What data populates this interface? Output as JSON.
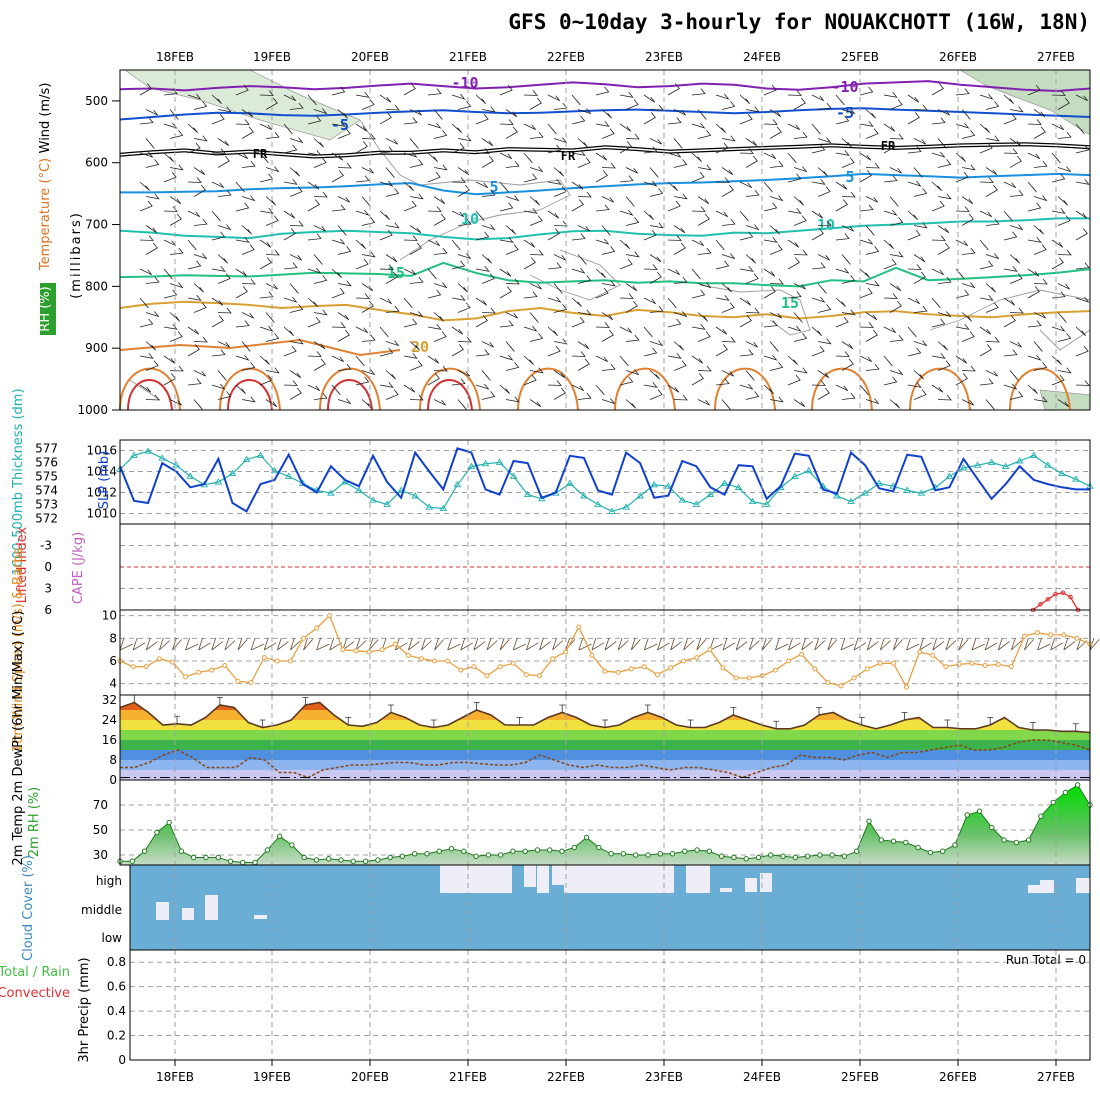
{
  "title": "GFS 0~10day 3-hourly for NOUAKCHOTT (16W, 18N)",
  "colors": {
    "grid": "#a0a0a0",
    "temp_label": "#e07020",
    "rh_label": "#2ca02c",
    "wind_label": "#000000",
    "slp_line": "#1040d0",
    "thickness_line": "#20b0b0",
    "cape_label": "#c060c0",
    "lifted_label": "#e03030",
    "wind10_label": "#e08a1a",
    "wind10_line": "#e8a040",
    "cloud_fill": "#6aaed6",
    "cloud_bar": "#eeeef8",
    "temp_band_hi": "#e0601a",
    "dew_line": "#8b4513",
    "rh_fill": "#2ca02c",
    "precip_total": "#44c044",
    "precip_conv": "#e03030"
  },
  "chart_data": [
    {
      "panel": "upper_air",
      "type": "contour",
      "title": "GFS 0~10day 3-hourly for NOUAKCHOTT (16W, 18N)",
      "x_ticks": [
        "18FEB",
        "19FEB",
        "20FEB",
        "21FEB",
        "22FEB",
        "23FEB",
        "24FEB",
        "25FEB",
        "26FEB",
        "27FEB"
      ],
      "ylabel_units": "(millibars)",
      "ylabel_wind": "Wind (m/s)",
      "ylabel_temp": "Temperature (°C)",
      "ylabel_rh": "RH (%)",
      "y_ticks": [
        "500",
        "600",
        "700",
        "800",
        "900",
        "1000"
      ],
      "ylim": [
        450,
        1000
      ],
      "isotherm_labels": [
        "-10",
        "-10",
        "-5",
        "-5",
        "FR",
        "FR",
        "FR",
        "5",
        "5",
        "10",
        "10",
        "15",
        "15",
        "20"
      ],
      "isotherms": [
        {
          "label": "-10",
          "color": "#8020b0",
          "pres": [
            481,
            480,
            483,
            479,
            476,
            478,
            481,
            479,
            475,
            472,
            476,
            480,
            478,
            474,
            470,
            473,
            478,
            476,
            472,
            474,
            480,
            482,
            478,
            472,
            470,
            468,
            474,
            478,
            482,
            484,
            480
          ]
        },
        {
          "label": "-5",
          "color": "#1050d0",
          "pres": [
            530,
            526,
            522,
            519,
            520,
            523,
            524,
            522,
            519,
            517,
            515,
            518,
            520,
            519,
            517,
            515,
            514,
            516,
            518,
            520,
            518,
            515,
            513,
            512,
            514,
            516,
            518,
            520,
            522,
            524,
            526
          ]
        },
        {
          "label": "FR",
          "color": "#000000",
          "pres": [
            587,
            583,
            580,
            585,
            582,
            586,
            590,
            588,
            584,
            584,
            580,
            583,
            578,
            579,
            580,
            575,
            578,
            582,
            580,
            578,
            576,
            574,
            572,
            574,
            576,
            574,
            572,
            571,
            570,
            572,
            575
          ]
        },
        {
          "label": "5",
          "color": "#1890e0",
          "pres": [
            648,
            648,
            647,
            646,
            643,
            641,
            640,
            638,
            635,
            633,
            645,
            651,
            648,
            645,
            641,
            638,
            635,
            633,
            632,
            630,
            628,
            625,
            622,
            618,
            620,
            622,
            624,
            622,
            620,
            618,
            620
          ]
        },
        {
          "label": "10",
          "color": "#20c0b0",
          "pres": [
            710,
            713,
            718,
            720,
            722,
            715,
            712,
            710,
            712,
            714,
            720,
            724,
            722,
            716,
            711,
            710,
            715,
            717,
            718,
            713,
            714,
            710,
            706,
            702,
            700,
            698,
            695,
            695,
            693,
            690,
            690
          ]
        },
        {
          "label": "15",
          "color": "#20c080",
          "pres": [
            785,
            784,
            782,
            783,
            784,
            781,
            778,
            779,
            780,
            783,
            762,
            778,
            790,
            794,
            792,
            790,
            794,
            792,
            795,
            795,
            798,
            800,
            790,
            792,
            770,
            790,
            788,
            785,
            782,
            778,
            772
          ]
        },
        {
          "label": "20",
          "color": "#d8a030",
          "pres": [
            835,
            828,
            825,
            827,
            830,
            835,
            832,
            830,
            838,
            845,
            855,
            852,
            840,
            835,
            843,
            848,
            838,
            842,
            848,
            850,
            845,
            852,
            848,
            842,
            840,
            845,
            848,
            850,
            845,
            842,
            840
          ]
        }
      ]
    },
    {
      "panel": "slp_thickness",
      "type": "line",
      "ylabel_slp": "SLP (mb)",
      "ylabel_thickness": "1000-500mb Thickness (dm)",
      "y_ticks_slp": [
        "1016",
        "1014",
        "1012",
        "1010"
      ],
      "ylim_slp": [
        1009,
        1017
      ],
      "y_ticks_thickness": [
        "577",
        "576",
        "575",
        "574",
        "573",
        "572"
      ],
      "ylim_thickness": [
        571.6,
        577.6
      ],
      "series": [
        {
          "name": "SLP",
          "values": [
            1014.5,
            1011.2,
            1011.0,
            1014.8,
            1014.0,
            1012.5,
            1012.8,
            1015.2,
            1011.0,
            1010.2,
            1012.8,
            1013.2,
            1015.6,
            1012.8,
            1012.0,
            1014.5,
            1013.2,
            1012.6,
            1015.5,
            1013.0,
            1011.5,
            1015.8,
            1014.0,
            1012.3,
            1016.2,
            1015.8,
            1012.3,
            1011.8,
            1015.0,
            1014.8,
            1011.5,
            1012.0,
            1015.5,
            1015.3,
            1012.2,
            1011.8,
            1015.8,
            1014.8,
            1011.5,
            1011.7,
            1015.0,
            1014.5,
            1012.5,
            1011.8,
            1014.6,
            1014.5,
            1011.4,
            1012.6,
            1015.7,
            1015.5,
            1012.3,
            1011.9,
            1015.8,
            1014.6,
            1012.4,
            1012.1,
            1015.6,
            1015.4,
            1012.2,
            1012.5,
            1015.2,
            1013.3,
            1011.4,
            1012.8,
            1014.5,
            1013.2,
            1012.8,
            1012.5,
            1012.3,
            1012.3
          ]
        },
        {
          "name": "Thickness",
          "values": [
            575.5,
            576.5,
            576.8,
            576.3,
            575.8,
            575.0,
            574.4,
            574.6,
            575.2,
            576.2,
            576.5,
            575.4,
            575.0,
            574.5,
            574.0,
            573.8,
            574.6,
            574.0,
            573.3,
            573.0,
            574.0,
            573.6,
            572.8,
            572.7,
            574.4,
            575.7,
            575.9,
            576.0,
            575.0,
            573.7,
            573.4,
            573.8,
            574.5,
            573.6,
            573.0,
            572.5,
            572.8,
            573.6,
            574.4,
            574.3,
            573.3,
            573.0,
            573.7,
            574.5,
            574.2,
            573.2,
            573.0,
            574.2,
            575.0,
            575.4,
            574.3,
            573.6,
            573.2,
            573.8,
            574.5,
            574.3,
            574.0,
            573.8,
            574.2,
            575.0,
            575.6,
            575.8,
            576.0,
            575.7,
            576.1,
            576.5,
            575.8,
            575.2,
            574.8,
            574.3
          ]
        }
      ]
    },
    {
      "panel": "cape_li",
      "type": "line",
      "ylabel_li": "Lifted Index",
      "ylabel_cape": "CAPE (J/kg)",
      "y_ticks": [
        "-3",
        "0",
        "3",
        "6"
      ],
      "ylim": [
        -6,
        6
      ],
      "series": [
        {
          "name": "Lifted Index",
          "x_start_index": 63,
          "values": [
            6.0,
            5.2,
            4.5,
            3.8,
            3.6,
            4.2,
            6.0
          ]
        }
      ]
    },
    {
      "panel": "wind10m",
      "type": "line",
      "ylabel": "10m Wind Speed (m/s) & Barbs",
      "y_ticks": [
        "10",
        "8",
        "6",
        "4"
      ],
      "ylim": [
        3,
        10.5
      ],
      "series": [
        {
          "name": "Wind Speed",
          "values": [
            6.0,
            5.5,
            5.5,
            6.2,
            5.9,
            4.6,
            5.0,
            5.2,
            5.6,
            4.2,
            4.1,
            6.3,
            6.0,
            6.0,
            8.0,
            8.9,
            10.0,
            7.0,
            6.9,
            6.8,
            7.0,
            7.5,
            6.5,
            6.2,
            6.0,
            6.0,
            5.2,
            5.5,
            4.7,
            5.5,
            5.8,
            4.8,
            4.7,
            6.2,
            6.8,
            9.0,
            6.5,
            5.1,
            5.0,
            5.3,
            5.5,
            4.8,
            5.4,
            6.0,
            6.3,
            7.0,
            5.4,
            4.5,
            4.5,
            4.7,
            5.2,
            6.0,
            6.6,
            5.3,
            4.1,
            3.8,
            4.5,
            5.3,
            5.8,
            5.8,
            3.7,
            6.8,
            6.5,
            5.5,
            5.7,
            5.8,
            5.6,
            5.7,
            5.5,
            8.2,
            8.5,
            8.3,
            8.3,
            8.0,
            7.5
          ]
        }
      ]
    },
    {
      "panel": "temp2m",
      "type": "area",
      "ylabel": "2m Temp 2m DewPt (6hr Min/Max) (°C)",
      "y_ticks": [
        "32",
        "24",
        "16",
        "8",
        "0"
      ],
      "ylim": [
        0,
        34
      ],
      "series": [
        {
          "name": "Temp",
          "values": [
            29,
            31,
            27,
            22,
            22.5,
            22,
            25,
            30,
            29,
            23,
            21,
            22,
            24,
            30,
            31,
            26,
            22,
            21.5,
            23,
            27,
            25,
            22,
            21,
            22,
            25,
            28,
            26,
            22,
            22,
            22,
            25,
            27,
            25,
            22,
            21,
            22,
            25,
            27,
            25,
            22,
            21,
            21,
            23,
            26,
            24,
            22,
            20.5,
            20.5,
            22,
            26,
            27,
            24,
            22,
            20.5,
            22,
            24,
            25,
            21,
            21,
            20.5,
            20.5,
            22,
            25,
            21,
            20,
            20,
            19.5,
            19.5,
            19
          ]
        },
        {
          "name": "DewPt",
          "values": [
            5,
            5,
            7,
            10,
            12,
            9,
            5,
            5,
            5,
            9,
            8,
            3,
            3,
            1,
            4,
            5,
            6,
            6,
            6.5,
            7,
            7,
            6,
            6,
            7,
            7,
            6.5,
            6,
            6,
            7,
            10,
            8,
            6,
            5,
            6,
            5,
            5,
            6,
            5,
            4,
            5,
            5,
            4,
            3,
            1,
            3,
            5,
            6,
            10,
            9,
            9,
            8,
            10,
            11,
            9,
            11,
            11,
            12,
            13,
            14,
            12,
            12,
            13,
            15,
            16,
            16,
            15,
            14,
            12
          ]
        }
      ]
    },
    {
      "panel": "rh2m",
      "type": "area",
      "ylabel": "2m RH (%)",
      "y_ticks": [
        "70",
        "50",
        "30"
      ],
      "ylim": [
        22,
        90
      ],
      "series": [
        {
          "name": "RH",
          "values": [
            25,
            25,
            33,
            48,
            56,
            33,
            28,
            28,
            28,
            25,
            24,
            24,
            34,
            45,
            38,
            28,
            26,
            27,
            26,
            25,
            25,
            26,
            28,
            29,
            31,
            31,
            33,
            35,
            33,
            29,
            30,
            30,
            33,
            33,
            34,
            34,
            33,
            36,
            44,
            36,
            31,
            31,
            30,
            30,
            31,
            31,
            33,
            34,
            33,
            29,
            28,
            27,
            28,
            30,
            29,
            28,
            29,
            30,
            30,
            29,
            33,
            57,
            42,
            41,
            40,
            36,
            32,
            33,
            38,
            62,
            65,
            52,
            42,
            40,
            42,
            61,
            72,
            80,
            86,
            70
          ]
        }
      ]
    },
    {
      "panel": "cloud",
      "type": "bar",
      "ylabel": "Cloud Cover (%)",
      "y_ticks": [
        "high",
        "middle",
        "low"
      ]
    },
    {
      "panel": "precip",
      "type": "bar",
      "ylabel": "3hr Precip (mm)",
      "legend_total": "Total / Rain",
      "legend_conv": "Convective",
      "run_total": "Run Total = 0",
      "y_ticks": [
        "0.8",
        "0.6",
        "0.4",
        "0.2",
        "0"
      ],
      "ylim": [
        0,
        0.9
      ],
      "x_ticks": [
        "18FEB",
        "19FEB",
        "20FEB",
        "21FEB",
        "22FEB",
        "23FEB",
        "24FEB",
        "25FEB",
        "26FEB",
        "27FEB"
      ]
    }
  ]
}
